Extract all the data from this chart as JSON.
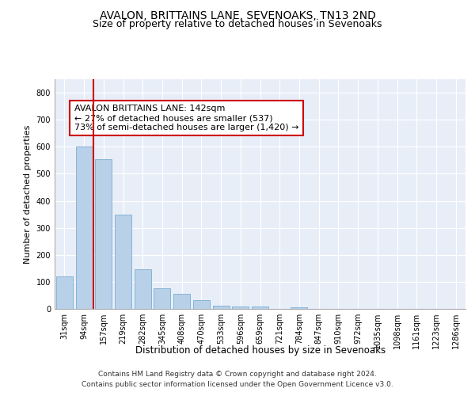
{
  "title1": "AVALON, BRITTAINS LANE, SEVENOAKS, TN13 2ND",
  "title2": "Size of property relative to detached houses in Sevenoaks",
  "xlabel": "Distribution of detached houses by size in Sevenoaks",
  "ylabel": "Number of detached properties",
  "categories": [
    "31sqm",
    "94sqm",
    "157sqm",
    "219sqm",
    "282sqm",
    "345sqm",
    "408sqm",
    "470sqm",
    "533sqm",
    "596sqm",
    "659sqm",
    "721sqm",
    "784sqm",
    "847sqm",
    "910sqm",
    "972sqm",
    "1035sqm",
    "1098sqm",
    "1161sqm",
    "1223sqm",
    "1286sqm"
  ],
  "values": [
    120,
    600,
    555,
    348,
    148,
    75,
    55,
    33,
    12,
    10,
    10,
    0,
    7,
    0,
    0,
    0,
    0,
    0,
    0,
    0,
    0
  ],
  "bar_color": "#b8d0e8",
  "bar_edge_color": "#7aadd4",
  "vline_x_index": 2,
  "vline_color": "#cc0000",
  "annotation_line1": "AVALON BRITTAINS LANE: 142sqm",
  "annotation_line2": "← 27% of detached houses are smaller (537)",
  "annotation_line3": "73% of semi-detached houses are larger (1,420) →",
  "annotation_box_color": "#cc0000",
  "ylim": [
    0,
    850
  ],
  "yticks": [
    0,
    100,
    200,
    300,
    400,
    500,
    600,
    700,
    800
  ],
  "background_color": "#e8eef8",
  "footer_line1": "Contains HM Land Registry data © Crown copyright and database right 2024.",
  "footer_line2": "Contains public sector information licensed under the Open Government Licence v3.0.",
  "title1_fontsize": 10,
  "title2_fontsize": 9,
  "xlabel_fontsize": 8.5,
  "ylabel_fontsize": 8,
  "tick_fontsize": 7,
  "annotation_fontsize": 8,
  "footer_fontsize": 6.5
}
